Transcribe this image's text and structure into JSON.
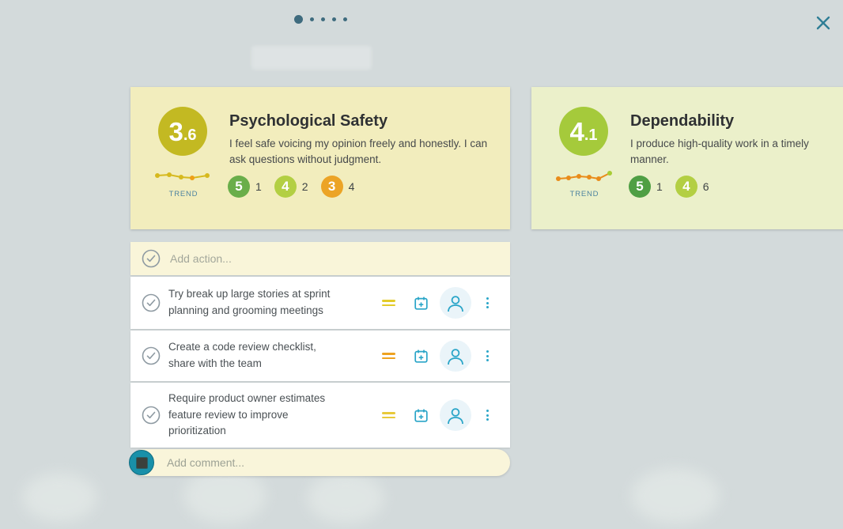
{
  "pagination": {
    "dot_count": 5,
    "active_index": 0
  },
  "colors": {
    "background": "#d3dadb",
    "pagination_dot": "#3e6b7e",
    "close_icon": "#2f7e96",
    "teal_icon": "#2aa5c8",
    "checkbox_gray": "#8e9aa2",
    "trend_label_color": "#4e84a0"
  },
  "cards": [
    {
      "title": "Psychological Safety",
      "description": "I feel safe voicing my opinion freely and honestly. I can ask questions without judgment.",
      "score_value": "3.6",
      "score_main": "3",
      "score_frac": ".6",
      "score_color": "#c3b922",
      "bg_color": "#f2edbd",
      "trend_label": "TREND",
      "trend": {
        "line_color": "#d6b91e",
        "points": [
          {
            "x": 5,
            "y": 8,
            "c": "#d6b91e"
          },
          {
            "x": 20,
            "y": 7,
            "c": "#d6b91e"
          },
          {
            "x": 35,
            "y": 10,
            "c": "#d6b91e"
          },
          {
            "x": 49,
            "y": 11,
            "c": "#ee9f17"
          },
          {
            "x": 68,
            "y": 8,
            "c": "#d6b91e"
          }
        ]
      },
      "votes": [
        {
          "value": "5",
          "count": "1",
          "color": "#6aae4a"
        },
        {
          "value": "4",
          "count": "2",
          "color": "#b3cf43"
        },
        {
          "value": "3",
          "count": "4",
          "color": "#eca426"
        }
      ]
    },
    {
      "title": "Dependability",
      "description": "I produce high-quality work in a timely manner.",
      "score_value": "4.1",
      "score_main": "4",
      "score_frac": ".1",
      "score_color": "#a5ca3b",
      "bg_color": "#ebf0ca",
      "trend_label": "TREND",
      "trend": {
        "line_color": "#e98c1a",
        "points": [
          {
            "x": 5,
            "y": 12,
            "c": "#e98c1a"
          },
          {
            "x": 18,
            "y": 11,
            "c": "#e98c1a"
          },
          {
            "x": 31,
            "y": 9,
            "c": "#e98c1a"
          },
          {
            "x": 44,
            "y": 10,
            "c": "#e98c1a"
          },
          {
            "x": 56,
            "y": 12,
            "c": "#e98c1a"
          },
          {
            "x": 70,
            "y": 5,
            "c": "#a8cc35"
          }
        ]
      },
      "votes": [
        {
          "value": "5",
          "count": "1",
          "color": "#4f9f44"
        },
        {
          "value": "4",
          "count": "6",
          "color": "#b3cf43"
        }
      ]
    }
  ],
  "actions": {
    "add_placeholder": "Add action...",
    "items": [
      {
        "text": "Try break up large stories at sprint planning and grooming meetings",
        "priority_color": "#e3cc2a"
      },
      {
        "text": "Create a code review checklist, share with the team",
        "priority_color": "#eea21f"
      },
      {
        "text": "Require product owner estimates feature review to improve prioritization",
        "priority_color": "#e8c93a"
      }
    ]
  },
  "comment": {
    "placeholder": "Add comment..."
  }
}
